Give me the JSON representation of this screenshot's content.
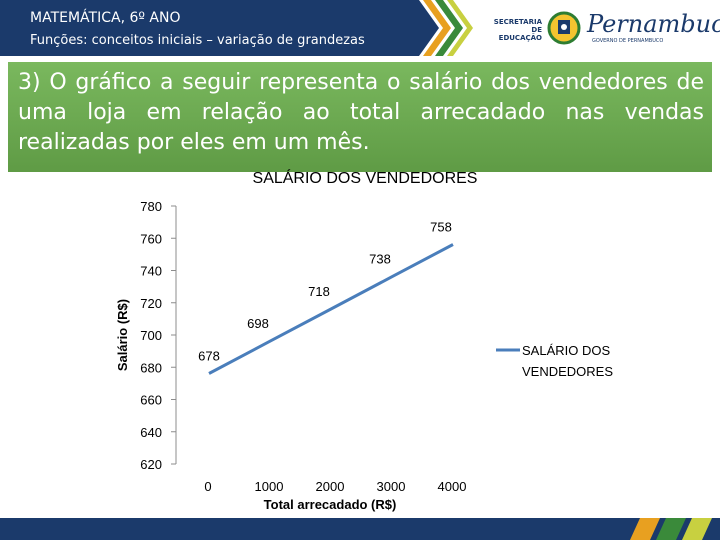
{
  "header": {
    "title": "MATEMÁTICA, 6º ANO",
    "subtitle": "Funções: conceitos iniciais – variação de grandezas",
    "secretaria": "SECRETARIA DE EDUCAÇÃO",
    "state": "Pernambuco",
    "state_sub": "GOVERNO DE PERNAMBUCO"
  },
  "question": {
    "text": "3) O gráfico a seguir representa o salário dos vendedores de uma loja em relação ao total arrecadado nas vendas realizadas por eles em um mês."
  },
  "colors": {
    "header_blue": "#1b3a6b",
    "question_green": "#6aa84f",
    "line": "#4a7ebb"
  },
  "chart_data": {
    "type": "line",
    "title": "SALÁRIO DOS VENDEDORES",
    "xlabel": "Total arrecadado (R$)",
    "ylabel": "Salário (R$)",
    "x": [
      0,
      1000,
      2000,
      3000,
      4000
    ],
    "series": [
      {
        "name": "SALÁRIO DOS VENDEDORES",
        "values": [
          678,
          698,
          718,
          738,
          758
        ]
      }
    ],
    "ylim": [
      620,
      780
    ],
    "yticks": [
      620,
      640,
      660,
      680,
      700,
      720,
      740,
      760,
      780
    ],
    "xticks": [
      "0",
      "1000",
      "2000",
      "3000",
      "4000"
    ],
    "data_labels": [
      "678",
      "698",
      "718",
      "738",
      "758"
    ],
    "grid": false,
    "legend_position": "right"
  }
}
